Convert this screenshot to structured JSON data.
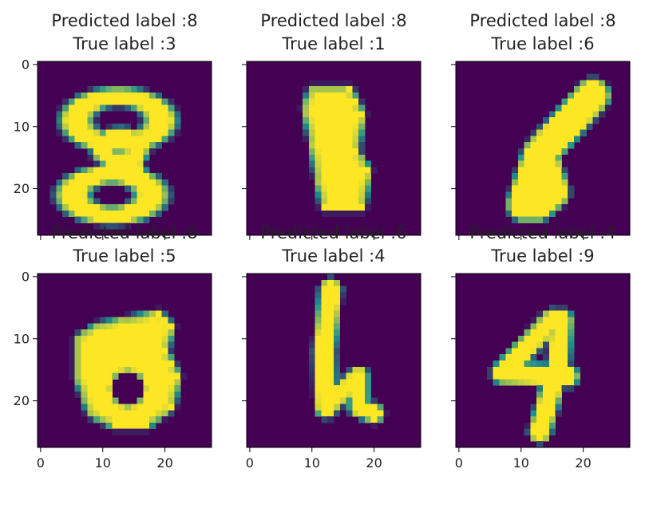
{
  "chart_data": {
    "type": "heatmap",
    "grid": false,
    "image_size": [
      28,
      28
    ],
    "xlim": [
      -0.5,
      27.5
    ],
    "ylim": [
      27.5,
      -0.5
    ],
    "x_ticks": [
      "0",
      "10",
      "20"
    ],
    "y_ticks": [
      "0",
      "10",
      "20"
    ],
    "colormap": {
      "low": "#440154",
      "mid": "#21918c",
      "high": "#fde725"
    },
    "panels": [
      {
        "predicted_title": "Predicted label :8",
        "true_title": "True label :3",
        "strokes": [
          {
            "kind": "ellipse",
            "cx": 12.5,
            "cy": 9.0,
            "rx": 6.8,
            "ry": 3.8,
            "w": 1.1
          },
          {
            "kind": "ellipse",
            "cx": 12.8,
            "cy": 13.5,
            "rx": 2.8,
            "ry": 2.0,
            "w": 1.0
          },
          {
            "kind": "ellipse",
            "cx": 11.5,
            "cy": 21.0,
            "rx": 6.3,
            "ry": 3.3,
            "w": 1.1
          },
          {
            "kind": "line",
            "pts": [
              [
                18.5,
                10.0
              ],
              [
                14.5,
                15.0
              ],
              [
                16.5,
                19.5
              ]
            ],
            "w": 1.1
          }
        ]
      },
      {
        "predicted_title": "Predicted label :8",
        "true_title": "True label :1",
        "strokes": [
          {
            "kind": "fill",
            "pts": [
              [
                10,
                4
              ],
              [
                16,
                4
              ],
              [
                18,
                8
              ],
              [
                17,
                14
              ],
              [
                19,
                17
              ],
              [
                18,
                23
              ],
              [
                12,
                23
              ],
              [
                11,
                18
              ],
              [
                10,
                12
              ],
              [
                9,
                7
              ]
            ]
          }
        ]
      },
      {
        "predicted_title": "Predicted label :8",
        "true_title": "True label :6",
        "strokes": [
          {
            "kind": "line",
            "pts": [
              [
                21.5,
                5.0
              ],
              [
                13.0,
                14.5
              ],
              [
                10.5,
                22.5
              ]
            ],
            "w": 2.4
          },
          {
            "kind": "line",
            "pts": [
              [
                13.0,
                14.5
              ],
              [
                15.0,
                20.5
              ],
              [
                12.5,
                22.5
              ]
            ],
            "w": 2.4
          }
        ]
      },
      {
        "predicted_title": "Predicted label :8",
        "true_title": "True label :5",
        "strokes": [
          {
            "kind": "fill",
            "pts": [
              [
                6,
                10
              ],
              [
                9,
                8
              ],
              [
                14,
                7
              ],
              [
                19,
                6
              ],
              [
                21,
                8
              ],
              [
                20,
                12
              ],
              [
                22,
                16
              ],
              [
                21,
                21
              ],
              [
                17,
                24
              ],
              [
                12,
                24
              ],
              [
                8,
                22
              ],
              [
                6,
                16
              ]
            ]
          },
          {
            "kind": "hole",
            "cx": 14.0,
            "cy": 18.0,
            "rx": 2.3,
            "ry": 2.4
          }
        ]
      },
      {
        "predicted_title": "Predicted label :6",
        "true_title": "True label :4",
        "strokes": [
          {
            "kind": "line",
            "pts": [
              [
                13.0,
                2.0
              ],
              [
                12.0,
                12.0
              ],
              [
                12.3,
                21.0
              ]
            ],
            "w": 1.4
          },
          {
            "kind": "line",
            "pts": [
              [
                12.3,
                21.0
              ],
              [
                16.0,
                17.5
              ],
              [
                17.5,
                16.0
              ]
            ],
            "w": 1.2
          },
          {
            "kind": "line",
            "pts": [
              [
                17.5,
                16.0
              ],
              [
                17.5,
                21.0
              ],
              [
                20.0,
                22.0
              ]
            ],
            "w": 1.2
          }
        ]
      },
      {
        "predicted_title": "Predicted label :4",
        "true_title": "True label :9",
        "strokes": [
          {
            "kind": "line",
            "pts": [
              [
                15.0,
                7.0
              ],
              [
                7.0,
                15.5
              ],
              [
                17.5,
                16.0
              ]
            ],
            "w": 1.4
          },
          {
            "kind": "line",
            "pts": [
              [
                16.5,
                7.0
              ],
              [
                16.0,
                14.0
              ],
              [
                13.0,
                25.0
              ]
            ],
            "w": 1.4
          }
        ]
      }
    ]
  }
}
